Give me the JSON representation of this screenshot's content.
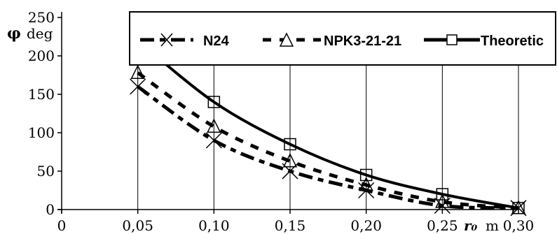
{
  "chart_data": {
    "type": "line",
    "title": "",
    "ylabel": {
      "symbol": "φ",
      "unit": "deg"
    },
    "xlabel": {
      "symbol": "r₀",
      "unit": "m"
    },
    "xlim": [
      0,
      0.3
    ],
    "ylim": [
      0,
      250
    ],
    "x_ticks": [
      "0",
      "0,05",
      "0,10",
      "0,15",
      "0,20",
      "0,25",
      "0,30"
    ],
    "y_ticks": [
      "0",
      "50",
      "100",
      "150",
      "200",
      "250"
    ],
    "x": [
      0.05,
      0.1,
      0.15,
      0.2,
      0.25,
      0.3
    ],
    "grid": "vertical",
    "legend_position": "top",
    "series": [
      {
        "name": "N24",
        "marker": "x",
        "line": "dash-dot",
        "color": "#000000",
        "values": [
          160,
          90,
          50,
          25,
          5,
          2
        ]
      },
      {
        "name": "NPK3-21-21",
        "marker": "triangle",
        "line": "dashed",
        "color": "#000000",
        "values": [
          178,
          108,
          63,
          32,
          10,
          2
        ]
      },
      {
        "name": "Theoretic",
        "marker": "square",
        "line": "solid",
        "color": "#000000",
        "values": [
          220,
          140,
          85,
          45,
          20,
          2
        ]
      }
    ]
  }
}
